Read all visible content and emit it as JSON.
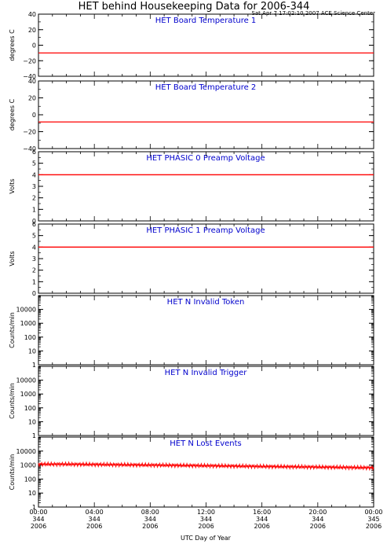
{
  "figure": {
    "title": "HET behind Housekeeping Data for 2006-344",
    "timestamp": "Sat Apr  7 17:02:10 2007 ACE Science Center",
    "xlabel": "UTC Day of Year",
    "xticks": [
      {
        "line1": "00:00",
        "line2": "344",
        "line3": "2006"
      },
      {
        "line1": "04:00",
        "line2": "344",
        "line3": "2006"
      },
      {
        "line1": "08:00",
        "line2": "344",
        "line3": "2006"
      },
      {
        "line1": "12:00",
        "line2": "344",
        "line3": "2006"
      },
      {
        "line1": "16:00",
        "line2": "344",
        "line3": "2006"
      },
      {
        "line1": "20:00",
        "line2": "344",
        "line3": "2006"
      },
      {
        "line1": "00:00",
        "line2": "345",
        "line3": "2006"
      }
    ],
    "colors": {
      "title": "#0000cc",
      "data": "#ff0000",
      "axes": "#000000"
    }
  },
  "chart_data": [
    {
      "type": "line",
      "title": "HET Board Temperature 1",
      "ylabel": "degrees C",
      "yscale": "linear",
      "ylim": [
        -40,
        40
      ],
      "yticks": [
        "−40",
        "−20",
        "0",
        "20",
        "40"
      ],
      "yticks_values": [
        -40,
        -20,
        0,
        20,
        40
      ],
      "xlim": [
        0,
        24
      ],
      "series": [
        {
          "x": [
            0,
            24
          ],
          "y": [
            -10,
            -10
          ]
        }
      ]
    },
    {
      "type": "line",
      "title": "HET Board Temperature 2",
      "ylabel": "degrees C",
      "yscale": "linear",
      "ylim": [
        -40,
        40
      ],
      "yticks": [
        "−40",
        "−20",
        "0",
        "20",
        "40"
      ],
      "yticks_values": [
        -40,
        -20,
        0,
        20,
        40
      ],
      "xlim": [
        0,
        24
      ],
      "series": [
        {
          "x": [
            0,
            24
          ],
          "y": [
            -8.5,
            -8.5
          ]
        }
      ]
    },
    {
      "type": "line",
      "title": "HET PHASIC 0 Preamp Voltage",
      "ylabel": "Volts",
      "yscale": "linear",
      "ylim": [
        0,
        6
      ],
      "yticks": [
        "0",
        "1",
        "2",
        "3",
        "4",
        "5",
        "6"
      ],
      "yticks_values": [
        0,
        1,
        2,
        3,
        4,
        5,
        6
      ],
      "xlim": [
        0,
        24
      ],
      "series": [
        {
          "x": [
            0,
            24
          ],
          "y": [
            4.0,
            4.0
          ]
        }
      ]
    },
    {
      "type": "line",
      "title": "HET PHASIC 1 Preamp Voltage",
      "ylabel": "Volts",
      "yscale": "linear",
      "ylim": [
        0,
        6
      ],
      "yticks": [
        "0",
        "1",
        "2",
        "3",
        "4",
        "5",
        "6"
      ],
      "yticks_values": [
        0,
        1,
        2,
        3,
        4,
        5,
        6
      ],
      "xlim": [
        0,
        24
      ],
      "series": [
        {
          "x": [
            0,
            24
          ],
          "y": [
            4.0,
            4.0
          ]
        }
      ]
    },
    {
      "type": "line",
      "title": "HET N Invalid Token",
      "ylabel": "Counts/min",
      "yscale": "log",
      "ylim": [
        1,
        100000
      ],
      "yticks": [
        "1",
        "10",
        "100",
        "1000",
        "10000"
      ],
      "yticks_values": [
        1,
        10,
        100,
        1000,
        10000
      ],
      "xlim": [
        0,
        24
      ],
      "series": []
    },
    {
      "type": "line",
      "title": "HET N Invalid Trigger",
      "ylabel": "Counts/min",
      "yscale": "log",
      "ylim": [
        1,
        100000
      ],
      "yticks": [
        "1",
        "10",
        "100",
        "1000",
        "10000"
      ],
      "yticks_values": [
        1,
        10,
        100,
        1000,
        10000
      ],
      "xlim": [
        0,
        24
      ],
      "series": []
    },
    {
      "type": "line",
      "title": "HET N Lost Events",
      "ylabel": "Counts/min",
      "yscale": "log",
      "ylim": [
        1,
        100000
      ],
      "yticks": [
        "1",
        "10",
        "100",
        "1000",
        "10000"
      ],
      "yticks_values": [
        1,
        10,
        100,
        1000,
        10000
      ],
      "xlim": [
        0,
        24
      ],
      "series": [
        {
          "x": [
            0,
            2,
            4,
            6,
            8,
            10,
            12,
            14,
            16,
            18,
            20,
            22,
            24
          ],
          "y": [
            1150,
            1150,
            1100,
            1050,
            1000,
            950,
            900,
            850,
            800,
            760,
            720,
            680,
            640
          ],
          "spread": 0.35
        }
      ]
    }
  ]
}
